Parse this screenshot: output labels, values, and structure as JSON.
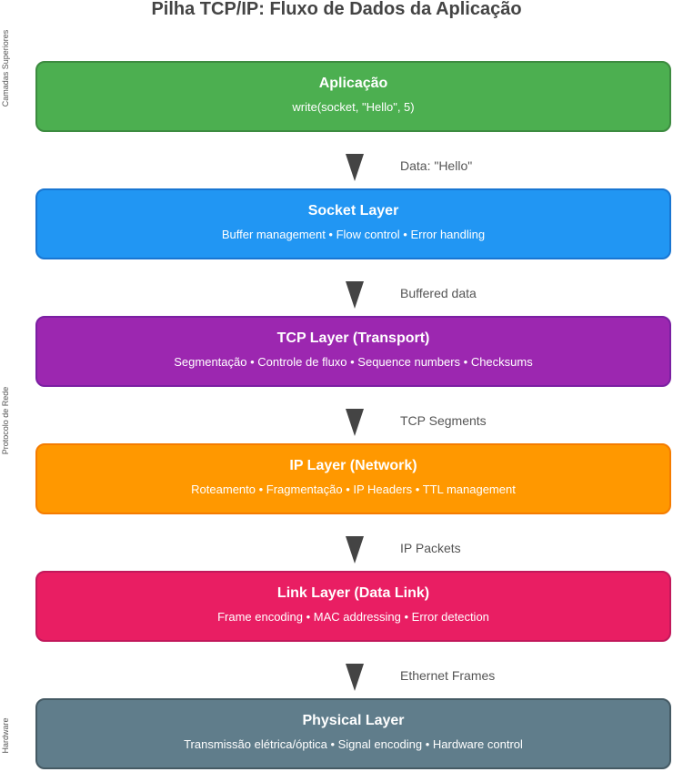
{
  "title": "Pilha TCP/IP: Fluxo de Dados da Aplicação",
  "side_labels": {
    "upper": "Camadas Superiores",
    "network": "Protocolo de Rede",
    "hardware": "Hardware"
  },
  "layers": [
    {
      "name": "Aplicação",
      "desc": "write(socket, \"Hello\", 5)",
      "color": "#4CAF50",
      "border": "#3d8b40"
    },
    {
      "name": "Socket Layer",
      "desc": "Buffer management • Flow control • Error handling",
      "color": "#2196F3",
      "border": "#1976D2"
    },
    {
      "name": "TCP Layer (Transport)",
      "desc": "Segmentação • Controle de fluxo • Sequence numbers • Checksums",
      "color": "#9C27B0",
      "border": "#7B1FA2"
    },
    {
      "name": "IP Layer (Network)",
      "desc": "Roteamento • Fragmentação • IP Headers • TTL management",
      "color": "#FF9800",
      "border": "#F57C00"
    },
    {
      "name": "Link Layer (Data Link)",
      "desc": "Frame encoding • MAC addressing • Error detection",
      "color": "#E91E63",
      "border": "#C2185B"
    },
    {
      "name": "Physical Layer",
      "desc": "Transmissão elétrica/óptica • Signal encoding • Hardware control",
      "color": "#607D8B",
      "border": "#455A64"
    }
  ],
  "flows": [
    "Data: \"Hello\"",
    "Buffered data",
    "TCP Segments",
    "IP Packets",
    "Ethernet Frames"
  ]
}
